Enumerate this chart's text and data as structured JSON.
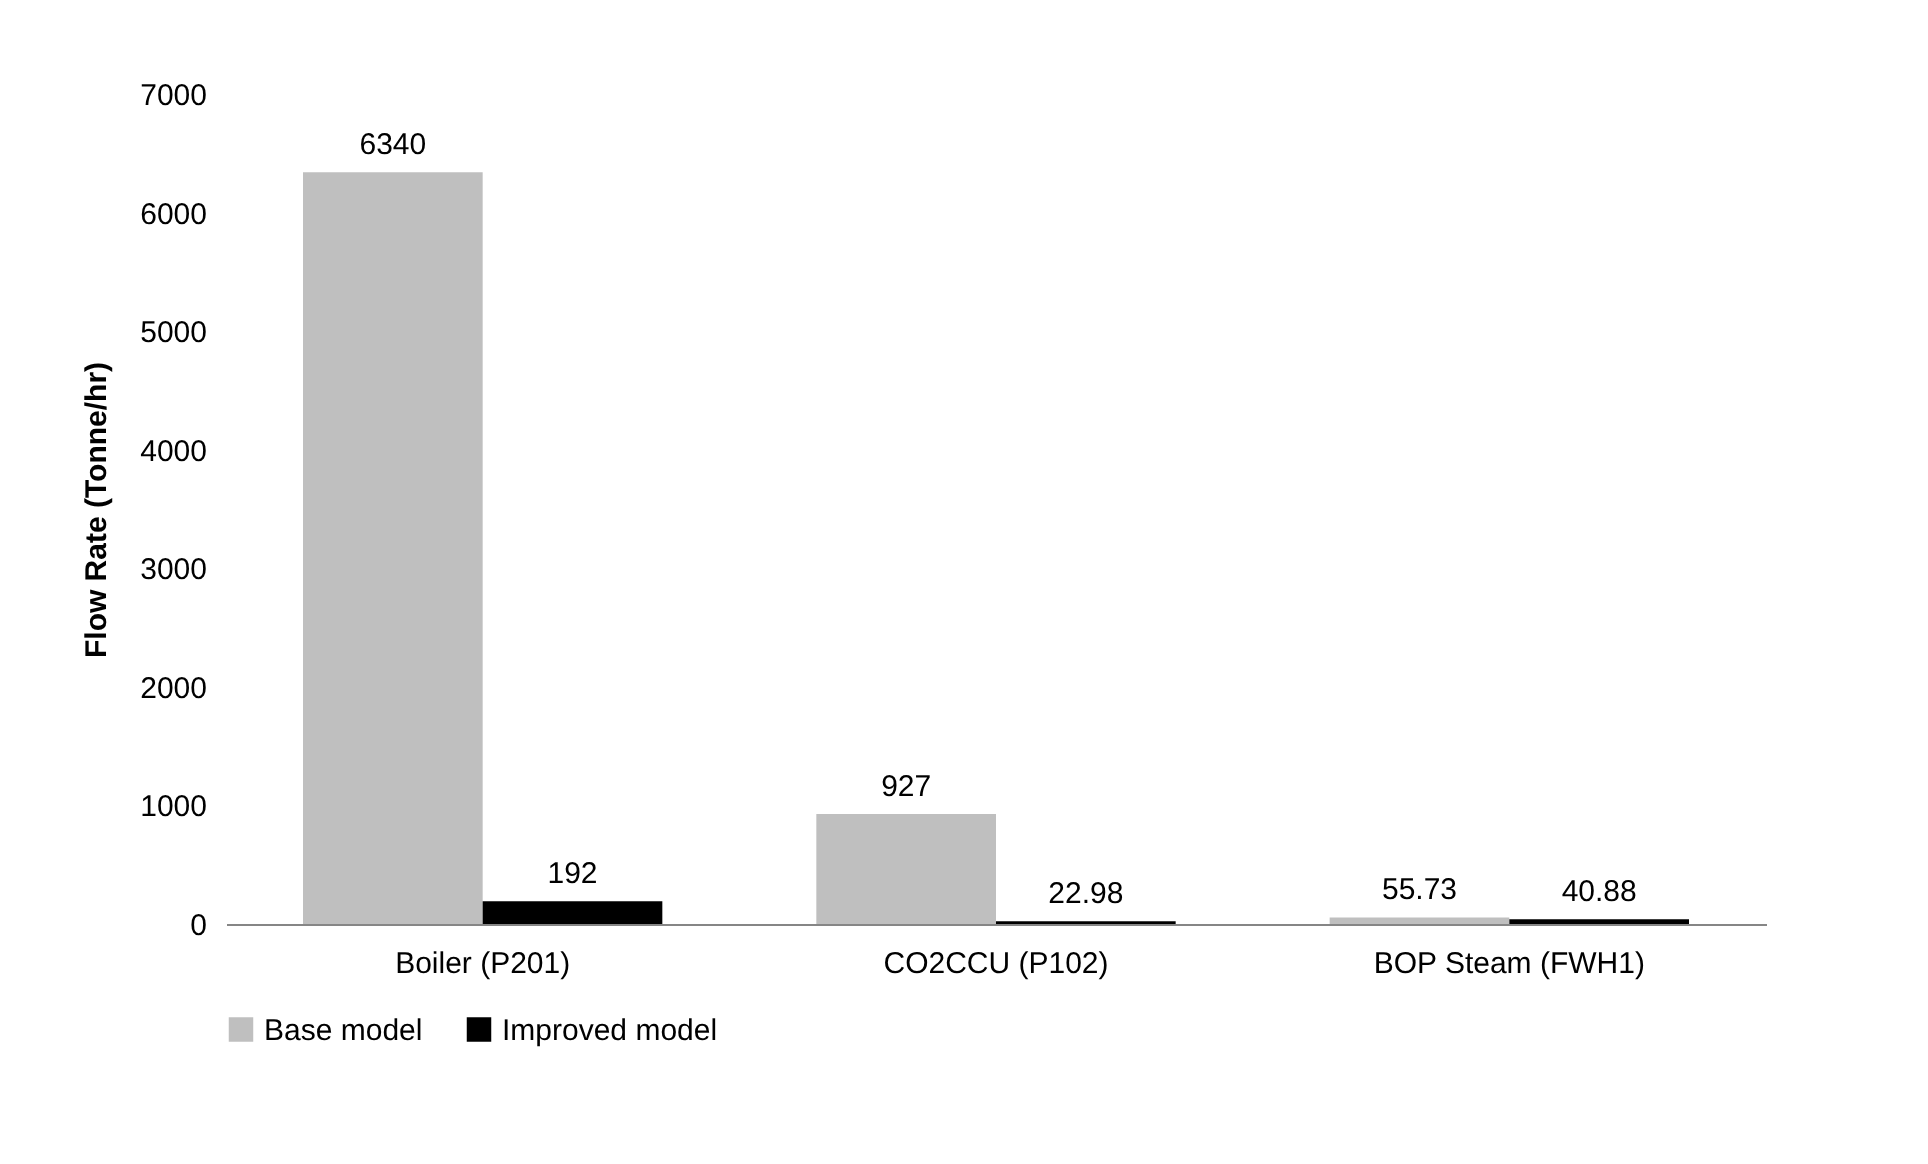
{
  "chart_data": {
    "type": "bar",
    "ylabel": "Flow Rate (Tonne/hr)",
    "categories": [
      "Boiler (P201)",
      "CO2CCU (P102)",
      "BOP Steam (FWH1)"
    ],
    "series": [
      {
        "name": "Base model",
        "color": "#bfbfbf",
        "values": [
          6340,
          927,
          55.73
        ]
      },
      {
        "name": "Improved model",
        "color": "#000000",
        "values": [
          192,
          22.98,
          40.88
        ]
      }
    ],
    "ylim": [
      0,
      7000
    ],
    "yticks": [
      0,
      1000,
      2000,
      3000,
      4000,
      5000,
      6000,
      7000
    ],
    "grid": false,
    "legend": "bottom",
    "data_labels": true
  }
}
